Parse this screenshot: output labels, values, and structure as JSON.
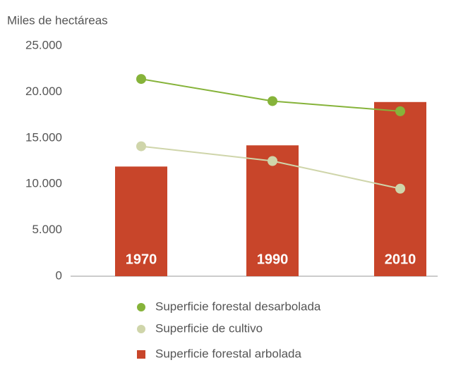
{
  "chart_data": {
    "type": "bar",
    "y_label": "Miles de hectáreas",
    "categories": [
      "1970",
      "1990",
      "2010"
    ],
    "series": [
      {
        "name": "Superficie forestal desarbolada",
        "type": "line",
        "color": "#86b33a",
        "values": [
          21400,
          19000,
          17900
        ]
      },
      {
        "name": "Superficie de cultivo",
        "type": "line",
        "color": "#cfd5aa",
        "values": [
          14100,
          12500,
          9500
        ]
      },
      {
        "name": "Superficie forestal arbolada",
        "type": "bar",
        "color": "#c8452a",
        "values": [
          11900,
          14200,
          18900
        ]
      }
    ],
    "ylim": [
      0,
      25000
    ],
    "yticks": [
      0,
      {
        "value": 5000,
        "label": "5.000"
      },
      {
        "value": 10000,
        "label": "10.000"
      },
      {
        "value": 15000,
        "label": "15.000"
      },
      {
        "value": 20000,
        "label": "20.000"
      },
      {
        "value": 25000,
        "label": "25.000"
      }
    ],
    "grid": false
  }
}
